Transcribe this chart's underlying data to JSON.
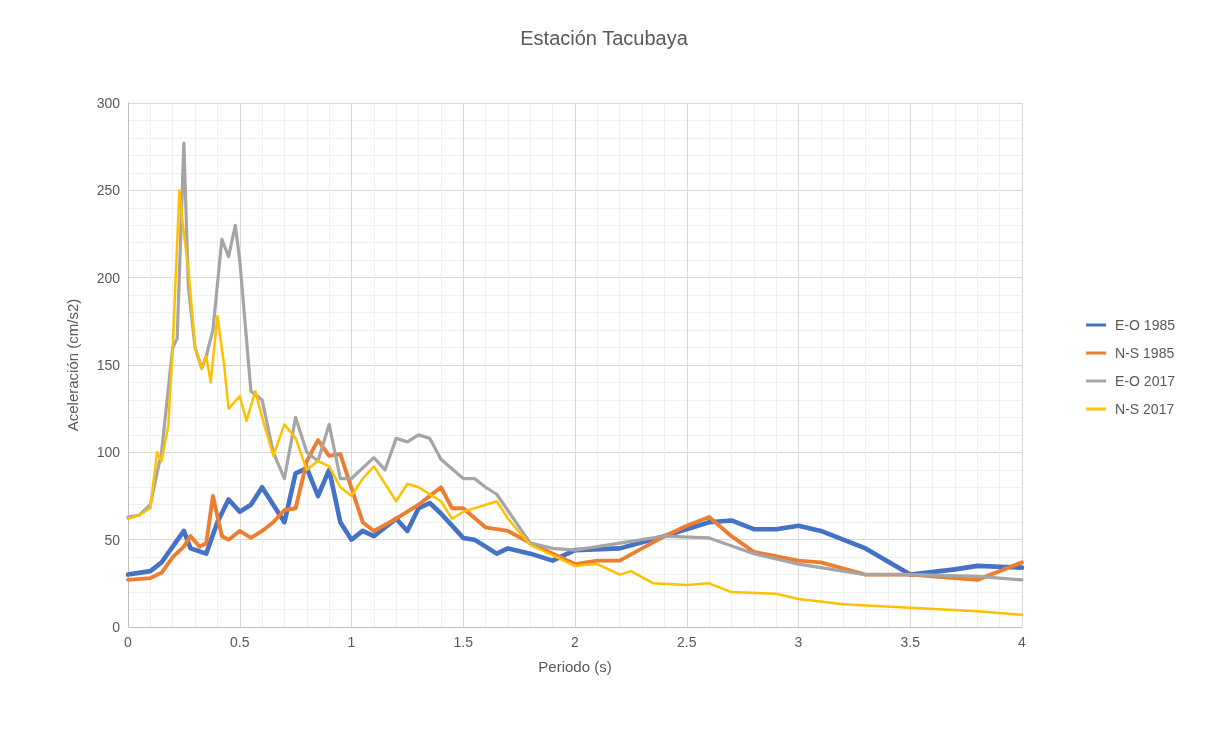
{
  "chart_data": {
    "type": "line",
    "title": "Estación Tacubaya",
    "xlabel": "Periodo (s)",
    "ylabel": "Aceleración (cm/s2)",
    "xlim": [
      0,
      4
    ],
    "xticks": [
      0,
      0.5,
      1,
      1.5,
      2,
      2.5,
      3,
      3.5,
      4
    ],
    "ylim": [
      0,
      300
    ],
    "yticks": [
      0,
      50,
      100,
      150,
      200,
      250,
      300
    ],
    "grid": true,
    "legend": "right",
    "marker": "none",
    "line_style": "solid",
    "series": [
      {
        "name": "E-O 1985",
        "color": "#4472c4",
        "x": [
          0,
          0.1,
          0.15,
          0.2,
          0.25,
          0.28,
          0.35,
          0.4,
          0.45,
          0.5,
          0.55,
          0.6,
          0.65,
          0.7,
          0.75,
          0.8,
          0.85,
          0.9,
          0.95,
          1.0,
          1.05,
          1.1,
          1.2,
          1.25,
          1.3,
          1.35,
          1.4,
          1.5,
          1.55,
          1.65,
          1.7,
          1.8,
          1.9,
          2.0,
          2.2,
          2.4,
          2.6,
          2.7,
          2.8,
          2.9,
          3.0,
          3.1,
          3.3,
          3.5,
          3.7,
          3.8,
          4.0
        ],
        "values": [
          30,
          32,
          37,
          46,
          55,
          45,
          42,
          60,
          73,
          66,
          70,
          80,
          70,
          60,
          88,
          91,
          75,
          90,
          60,
          50,
          55,
          52,
          62,
          55,
          68,
          71,
          65,
          51,
          50,
          42,
          45,
          42,
          38,
          44,
          45,
          52,
          60,
          61,
          56,
          56,
          58,
          55,
          45,
          30,
          33,
          35,
          34
        ]
      },
      {
        "name": "N-S 1985",
        "color": "#ed7d31",
        "x": [
          0,
          0.1,
          0.15,
          0.2,
          0.25,
          0.28,
          0.32,
          0.35,
          0.38,
          0.42,
          0.45,
          0.5,
          0.55,
          0.6,
          0.65,
          0.7,
          0.75,
          0.8,
          0.85,
          0.9,
          0.95,
          1.05,
          1.1,
          1.2,
          1.3,
          1.4,
          1.45,
          1.5,
          1.6,
          1.7,
          1.8,
          2.0,
          2.1,
          2.2,
          2.3,
          2.4,
          2.5,
          2.6,
          2.7,
          2.8,
          3.0,
          3.1,
          3.3,
          3.5,
          3.8,
          4.0
        ],
        "values": [
          27,
          28,
          31,
          40,
          46,
          52,
          46,
          48,
          75,
          52,
          50,
          55,
          51,
          55,
          60,
          67,
          68,
          95,
          107,
          98,
          99,
          60,
          55,
          62,
          70,
          80,
          68,
          68,
          57,
          55,
          48,
          36,
          38,
          38,
          45,
          52,
          58,
          63,
          52,
          43,
          38,
          37,
          30,
          30,
          27,
          37
        ]
      },
      {
        "name": "E-O 2017",
        "color": "#a5a5a5",
        "x": [
          0,
          0.05,
          0.1,
          0.15,
          0.2,
          0.22,
          0.25,
          0.27,
          0.3,
          0.33,
          0.35,
          0.38,
          0.42,
          0.45,
          0.48,
          0.5,
          0.55,
          0.6,
          0.65,
          0.7,
          0.75,
          0.8,
          0.85,
          0.9,
          0.95,
          1.0,
          1.1,
          1.15,
          1.2,
          1.25,
          1.3,
          1.35,
          1.4,
          1.5,
          1.55,
          1.6,
          1.65,
          1.8,
          1.9,
          2.0,
          2.2,
          2.4,
          2.6,
          2.8,
          3.0,
          3.2,
          3.3,
          3.5,
          3.8,
          4.0
        ],
        "values": [
          63,
          64,
          70,
          100,
          160,
          165,
          277,
          195,
          160,
          148,
          155,
          170,
          222,
          212,
          230,
          210,
          135,
          130,
          100,
          85,
          120,
          100,
          95,
          116,
          85,
          85,
          97,
          90,
          108,
          106,
          110,
          108,
          96,
          85,
          85,
          80,
          76,
          48,
          45,
          44,
          48,
          52,
          51,
          42,
          36,
          32,
          30,
          30,
          29,
          27
        ]
      },
      {
        "name": "N-S 2017",
        "color": "#ffc000",
        "x": [
          0,
          0.05,
          0.1,
          0.13,
          0.15,
          0.18,
          0.2,
          0.23,
          0.25,
          0.27,
          0.3,
          0.33,
          0.35,
          0.37,
          0.4,
          0.43,
          0.45,
          0.5,
          0.53,
          0.57,
          0.6,
          0.65,
          0.7,
          0.75,
          0.8,
          0.85,
          0.9,
          0.95,
          1.0,
          1.05,
          1.1,
          1.2,
          1.25,
          1.3,
          1.4,
          1.45,
          1.5,
          1.6,
          1.65,
          1.7,
          1.8,
          2.0,
          2.1,
          2.2,
          2.25,
          2.35,
          2.5,
          2.6,
          2.7,
          2.9,
          3.0,
          3.2,
          3.5,
          3.8,
          4.0
        ],
        "values": [
          62,
          64,
          68,
          100,
          95,
          115,
          160,
          250,
          225,
          205,
          160,
          148,
          155,
          140,
          178,
          150,
          125,
          132,
          118,
          135,
          120,
          98,
          116,
          108,
          90,
          95,
          92,
          80,
          75,
          85,
          92,
          72,
          82,
          80,
          72,
          62,
          66,
          70,
          72,
          62,
          47,
          35,
          36,
          30,
          32,
          25,
          24,
          25,
          20,
          19,
          16,
          13,
          11,
          9,
          7
        ]
      }
    ]
  }
}
